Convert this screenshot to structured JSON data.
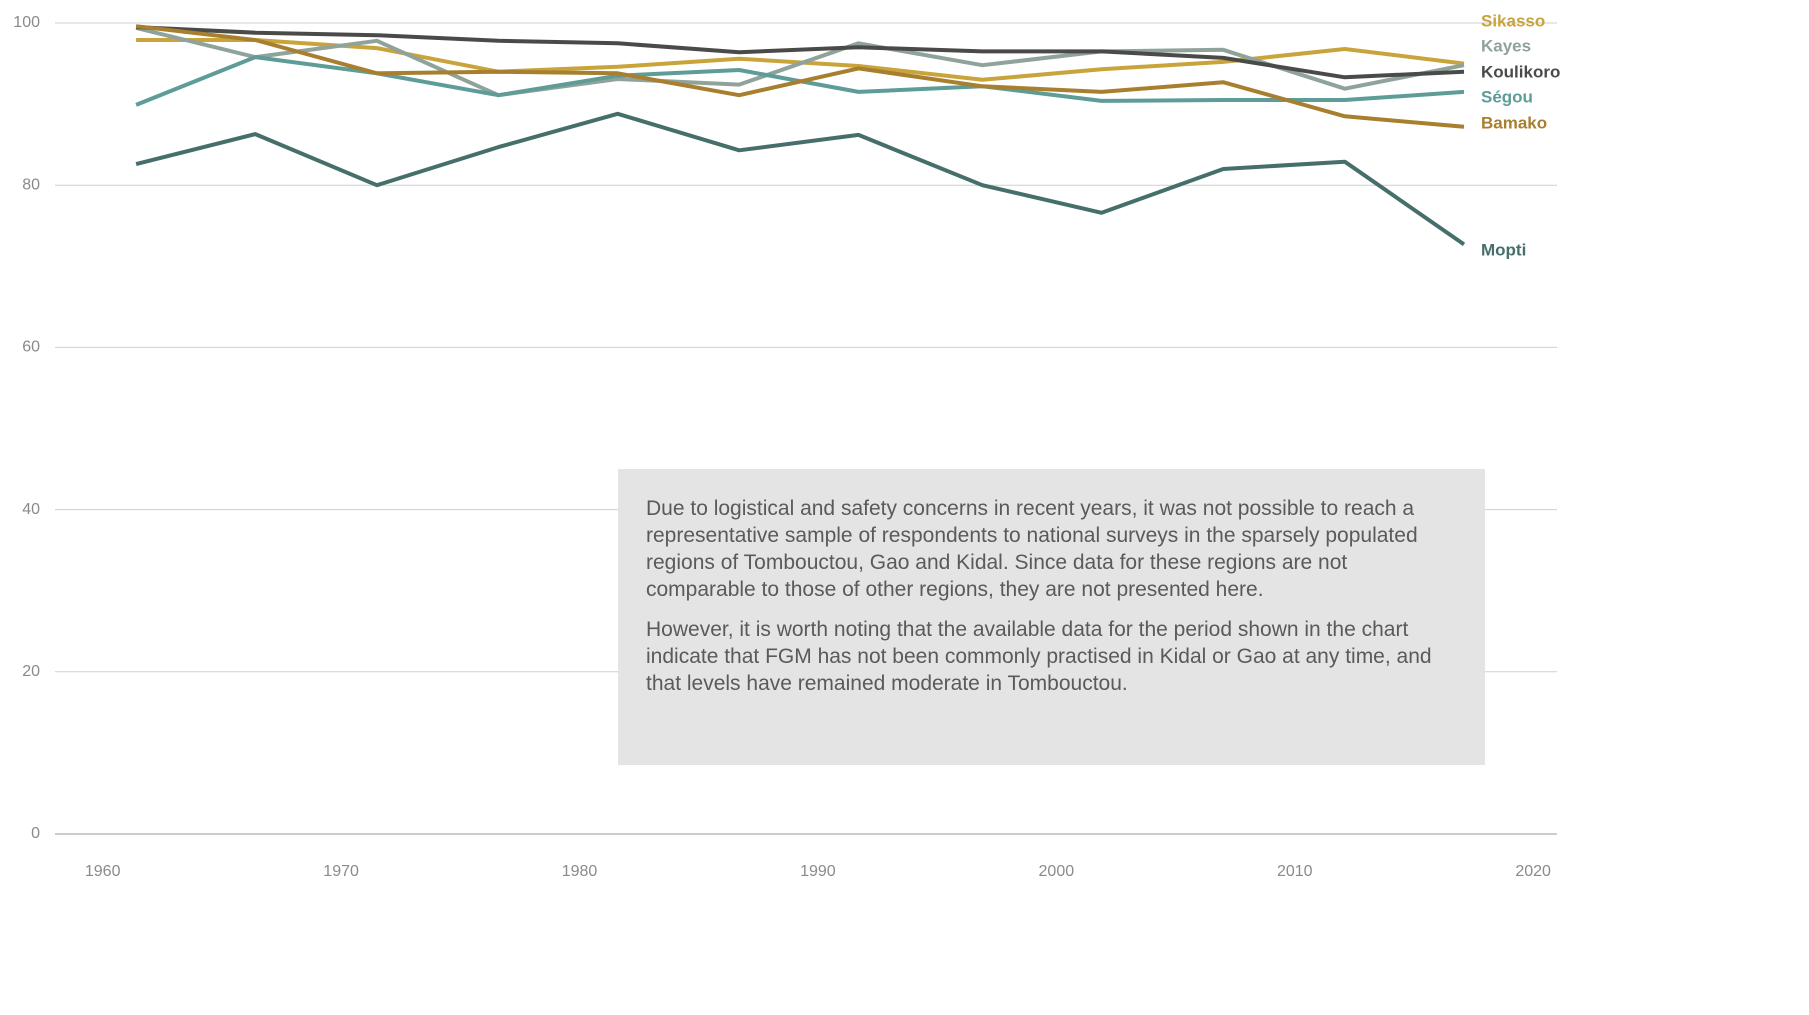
{
  "chart_data": {
    "type": "line",
    "x": [
      1961.4,
      1966.4,
      1971.5,
      1976.6,
      1981.6,
      1986.7,
      1991.7,
      1996.9,
      2001.9,
      2007.0,
      2012.1,
      2017.1
    ],
    "series": [
      {
        "name": "Sikasso",
        "color": "#c9a43a",
        "values": [
          97.9,
          97.9,
          96.9,
          94.0,
          94.6,
          95.6,
          94.7,
          93.0,
          94.3,
          95.2,
          96.8,
          95.0
        ]
      },
      {
        "name": "Kayes",
        "color": "#8fa39a",
        "values": [
          99.4,
          95.8,
          97.8,
          91.1,
          93.1,
          92.4,
          97.5,
          94.8,
          96.5,
          96.7,
          91.9,
          94.8
        ]
      },
      {
        "name": "Koulikoro",
        "color": "#4a4a48",
        "values": [
          99.5,
          98.8,
          98.5,
          97.8,
          97.5,
          96.4,
          97.0,
          96.5,
          96.5,
          95.7,
          93.3,
          94.0
        ]
      },
      {
        "name": "Ségou",
        "color": "#5e9c98",
        "values": [
          89.9,
          95.8,
          93.8,
          91.1,
          93.5,
          94.2,
          91.5,
          92.2,
          90.4,
          90.5,
          90.5,
          91.5
        ]
      },
      {
        "name": "Bamako",
        "color": "#a87f2e",
        "values": [
          99.6,
          97.9,
          93.8,
          94.0,
          93.8,
          91.1,
          94.4,
          92.2,
          91.5,
          92.7,
          88.5,
          87.2
        ]
      },
      {
        "name": "Mopti",
        "color": "#466f6b",
        "values": [
          82.6,
          86.3,
          80.0,
          84.7,
          88.8,
          84.3,
          86.2,
          80.0,
          76.6,
          82.0,
          82.9,
          72.7
        ]
      }
    ],
    "xlim": [
      1958,
      2021
    ],
    "xticks": [
      1960,
      1970,
      1980,
      1990,
      2000,
      2010,
      2020
    ],
    "ylim": [
      0,
      100
    ],
    "yticks": [
      0,
      20,
      40,
      60,
      80,
      100
    ],
    "grid": true,
    "note": [
      "Due to logistical and safety concerns in recent years, it was not possible to reach a representative sample of respondents to national surveys in the sparsely populated regions of Tombouctou, Gao and Kidal. Since data for these regions are not comparable to those of other regions, they are not presented here.",
      "However, it is worth noting that the available data for the period shown in the chart indicate that FGM has not been commonly practised in Kidal or Gao at any time, and that levels have remained moderate in Tombouctou."
    ]
  }
}
